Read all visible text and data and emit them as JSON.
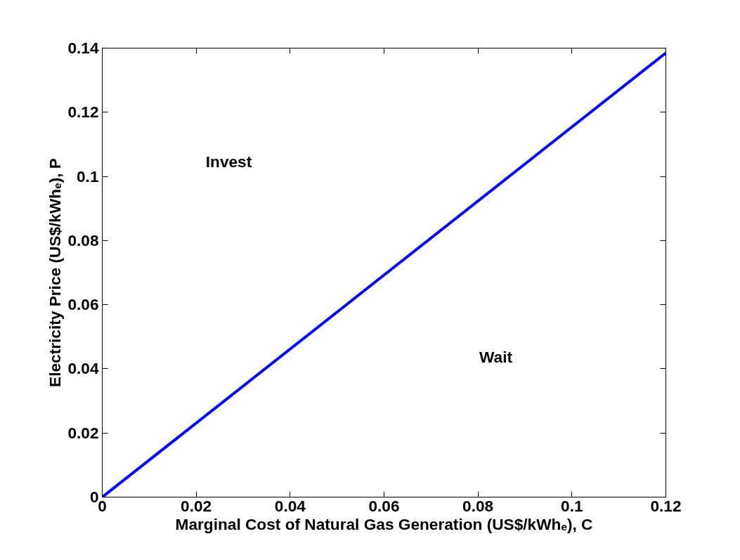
{
  "chart_data": {
    "type": "line",
    "xlabel": "Marginal Cost of Natural Gas Generation (US$/kWhₑ), C",
    "ylabel": "Electricity Price (US$/kWhₑ), P",
    "x": [
      0,
      0.12
    ],
    "series": [
      {
        "color": "#0000ff",
        "values": [
          0,
          0.1385
        ]
      }
    ],
    "xlim": [
      0,
      0.12
    ],
    "ylim": [
      0,
      0.14
    ],
    "xticks": [
      0,
      0.02,
      0.04,
      0.06,
      0.08,
      0.1,
      0.12
    ],
    "yticks": [
      0,
      0.02,
      0.04,
      0.06,
      0.08,
      0.1,
      0.12,
      0.14
    ],
    "annotations": [
      "Invest",
      "Wait"
    ],
    "grid": false,
    "marker": "none",
    "line_style": "solid"
  }
}
